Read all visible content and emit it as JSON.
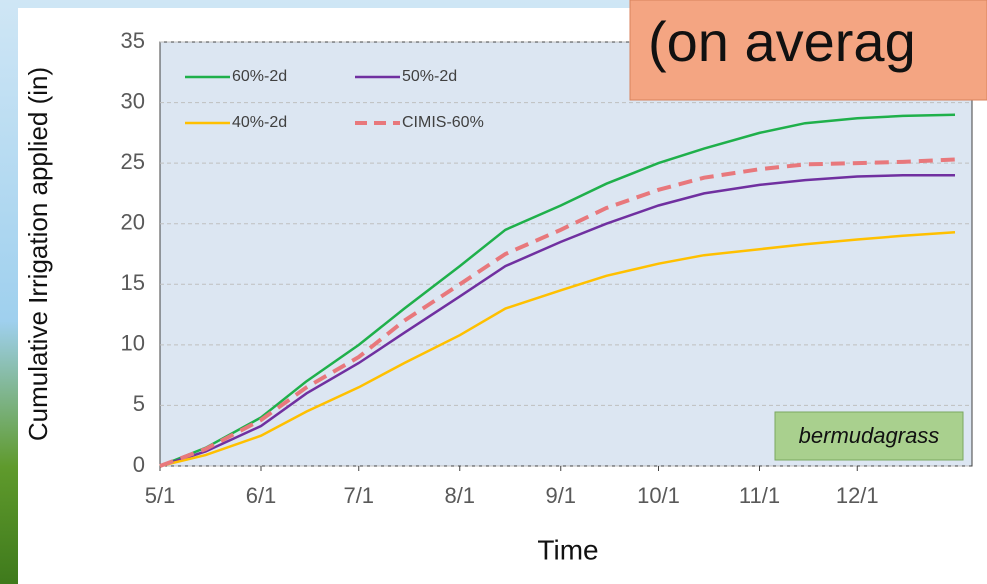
{
  "chart_data": {
    "type": "line",
    "banner": "(on averag",
    "annotation": "bermudagrass",
    "xlabel": "Time",
    "ylabel": "Cumulative Irrigation applied (in)",
    "x": [
      "5/1",
      "5/15",
      "6/1",
      "6/15",
      "7/1",
      "7/15",
      "8/1",
      "8/15",
      "9/1",
      "9/15",
      "10/1",
      "10/15",
      "11/1",
      "11/15",
      "12/1",
      "12/15",
      "12/31"
    ],
    "series": [
      {
        "name": "60%-2d",
        "color": "#1fb04b",
        "dashed": false,
        "values": [
          0,
          1.5,
          4,
          7,
          10,
          13,
          16.5,
          19.5,
          21.5,
          23.3,
          25,
          26.2,
          27.5,
          28.3,
          28.7,
          28.9,
          29
        ]
      },
      {
        "name": "50%-2d",
        "color": "#7030a0",
        "dashed": false,
        "values": [
          0,
          1.2,
          3.3,
          6,
          8.5,
          11,
          14,
          16.5,
          18.5,
          20,
          21.5,
          22.5,
          23.2,
          23.6,
          23.9,
          24,
          24
        ]
      },
      {
        "name": "40%-2d",
        "color": "#ffc000",
        "dashed": false,
        "values": [
          0,
          0.9,
          2.5,
          4.5,
          6.5,
          8.5,
          10.8,
          13,
          14.5,
          15.7,
          16.7,
          17.4,
          17.9,
          18.3,
          18.7,
          19,
          19.3
        ]
      },
      {
        "name": "CIMIS-60%",
        "color": "#e8787c",
        "dashed": true,
        "values": [
          0,
          1.4,
          3.8,
          6.5,
          9,
          12,
          15,
          17.5,
          19.5,
          21.3,
          22.8,
          23.8,
          24.5,
          24.9,
          25,
          25.1,
          25.3
        ]
      }
    ],
    "xlim": [
      "5/1",
      "12/31"
    ],
    "xticks": [
      "5/1",
      "6/1",
      "7/1",
      "8/1",
      "9/1",
      "10/1",
      "11/1",
      "12/1"
    ],
    "ylim": [
      0,
      35
    ],
    "yticks": [
      0,
      5,
      10,
      15,
      20,
      25,
      30,
      35
    ],
    "grid": true
  }
}
